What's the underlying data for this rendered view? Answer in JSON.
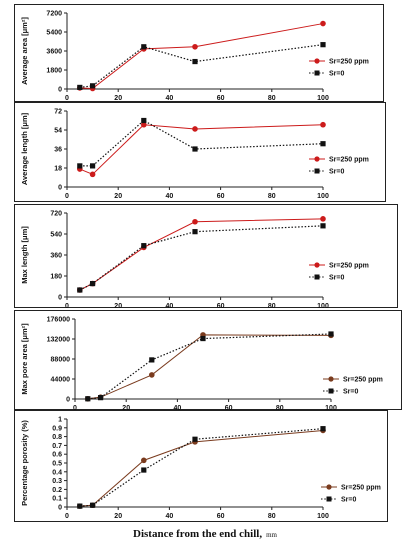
{
  "xlabel": "Distance from the end chill,",
  "xunit": "mm",
  "colors": {
    "sr250": "#cc1b1b",
    "sr0": "#111111",
    "sr250_brown": "#7a3b1e"
  },
  "chart_data": [
    {
      "type": "line",
      "ylabel": "Average area [μm²]",
      "yticks": [
        "0",
        "1800",
        "3600",
        "5400",
        "7200"
      ],
      "ylim": [
        0,
        7200
      ],
      "xticks": [
        "0",
        "20",
        "40",
        "60",
        "80",
        "100"
      ],
      "xlim": [
        0,
        100
      ],
      "legend_position": "right",
      "series": [
        {
          "name": "Sr=250 ppm",
          "style": "solid",
          "color_key": "sr250",
          "marker": "circle",
          "x": [
            5,
            10,
            30,
            50,
            100
          ],
          "y": [
            100,
            50,
            3800,
            4000,
            6200
          ]
        },
        {
          "name": "Sr=0",
          "style": "dotted",
          "color_key": "sr0",
          "marker": "square",
          "x": [
            5,
            10,
            30,
            50,
            100
          ],
          "y": [
            150,
            300,
            4000,
            2600,
            4200
          ]
        }
      ]
    },
    {
      "type": "line",
      "ylabel": "Average length [μm]",
      "yticks": [
        "0",
        "18",
        "36",
        "54",
        "72"
      ],
      "ylim": [
        0,
        72
      ],
      "xticks": [
        "0",
        "20",
        "40",
        "60",
        "80",
        "100"
      ],
      "xlim": [
        0,
        100
      ],
      "legend_position": "right",
      "series": [
        {
          "name": "Sr=250 ppm",
          "style": "solid",
          "color_key": "sr250",
          "marker": "circle",
          "x": [
            5,
            10,
            30,
            50,
            100
          ],
          "y": [
            17,
            12,
            59,
            55,
            59
          ]
        },
        {
          "name": "Sr=0",
          "style": "dotted",
          "color_key": "sr0",
          "marker": "square",
          "x": [
            5,
            10,
            30,
            50,
            100
          ],
          "y": [
            20,
            20,
            63,
            36,
            41
          ]
        }
      ]
    },
    {
      "type": "line",
      "ylabel": "Max length [μm]",
      "yticks": [
        "0",
        "180",
        "360",
        "540",
        "720"
      ],
      "ylim": [
        0,
        720
      ],
      "xticks": [
        "0",
        "20",
        "40",
        "60",
        "80",
        "100"
      ],
      "xlim": [
        0,
        100
      ],
      "legend_position": "right",
      "series": [
        {
          "name": "Sr=250 ppm",
          "style": "solid",
          "color_key": "sr250",
          "marker": "circle",
          "x": [
            5,
            10,
            30,
            50,
            100
          ],
          "y": [
            60,
            115,
            425,
            645,
            670
          ]
        },
        {
          "name": "Sr=0",
          "style": "dotted",
          "color_key": "sr0",
          "marker": "square",
          "x": [
            5,
            10,
            30,
            50,
            100
          ],
          "y": [
            60,
            115,
            440,
            560,
            610
          ]
        }
      ]
    },
    {
      "type": "line",
      "ylabel": "Max pore area [μm²]",
      "yticks": [
        "0",
        "44000",
        "88000",
        "132000",
        "176000"
      ],
      "ylim": [
        0,
        176000
      ],
      "xticks": [
        "0",
        "20",
        "40",
        "60",
        "80",
        "100"
      ],
      "xlim": [
        0,
        100
      ],
      "legend_position": "right",
      "series": [
        {
          "name": "Sr=250 ppm",
          "style": "solid",
          "color_key": "sr250_brown",
          "marker": "circle",
          "x": [
            5,
            10,
            30,
            50,
            100
          ],
          "y": [
            500,
            4000,
            53000,
            141000,
            140000
          ]
        },
        {
          "name": "Sr=0",
          "style": "dotted",
          "color_key": "sr0",
          "marker": "square",
          "x": [
            5,
            10,
            30,
            50,
            100
          ],
          "y": [
            500,
            3000,
            86000,
            133000,
            143000
          ]
        }
      ]
    },
    {
      "type": "line",
      "ylabel": "Percentage porosity (%)",
      "yticks": [
        "0",
        "0.1",
        "0.2",
        "0.3",
        "0.4",
        "0.5",
        "0.6",
        "0.7",
        "0.8",
        "0.9",
        "1"
      ],
      "ylim": [
        0,
        1
      ],
      "xticks": [
        "0",
        "20",
        "40",
        "60",
        "80",
        "100"
      ],
      "xlim": [
        0,
        100
      ],
      "legend_position": "right",
      "series": [
        {
          "name": "Sr=250 ppm",
          "style": "solid",
          "color_key": "sr250_brown",
          "marker": "circle",
          "x": [
            5,
            10,
            30,
            50,
            100
          ],
          "y": [
            0.01,
            0.02,
            0.53,
            0.74,
            0.87
          ]
        },
        {
          "name": "Sr=0",
          "style": "dotted",
          "color_key": "sr0",
          "marker": "square",
          "x": [
            5,
            10,
            30,
            50,
            100
          ],
          "y": [
            0.01,
            0.02,
            0.42,
            0.77,
            0.89
          ]
        }
      ]
    }
  ]
}
